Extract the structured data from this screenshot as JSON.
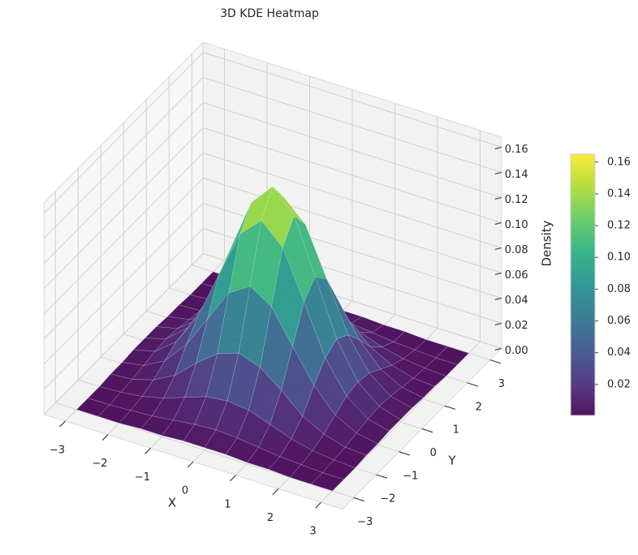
{
  "chart_data": {
    "type": "surface",
    "title": "3D KDE Heatmap",
    "xlabel": "X",
    "ylabel": "Y",
    "zlabel": "Density",
    "x": [
      -3,
      -2.5,
      -2,
      -1.5,
      -1,
      -0.5,
      0,
      0.5,
      1,
      1.5,
      2,
      2.5,
      3
    ],
    "y": [
      -3,
      -2.5,
      -2,
      -1.5,
      -1,
      -0.5,
      0,
      0.5,
      1,
      1.5,
      2,
      2.5,
      3
    ],
    "z": [
      [
        0,
        0,
        0,
        0.001,
        0.001,
        0.002,
        0.002,
        0.002,
        0.001,
        0.001,
        0,
        0,
        0
      ],
      [
        0,
        0,
        0.001,
        0.002,
        0.004,
        0.006,
        0.007,
        0.006,
        0.004,
        0.002,
        0.001,
        0,
        0
      ],
      [
        0,
        0.001,
        0.003,
        0.007,
        0.013,
        0.019,
        0.021,
        0.019,
        0.013,
        0.007,
        0.003,
        0.001,
        0
      ],
      [
        0.001,
        0.002,
        0.007,
        0.016,
        0.031,
        0.044,
        0.05,
        0.044,
        0.031,
        0.016,
        0.007,
        0.002,
        0.001
      ],
      [
        0.001,
        0.004,
        0.013,
        0.031,
        0.057,
        0.083,
        0.094,
        0.083,
        0.057,
        0.031,
        0.013,
        0.004,
        0.001
      ],
      [
        0.002,
        0.006,
        0.019,
        0.044,
        0.083,
        0.121,
        0.137,
        0.121,
        0.083,
        0.044,
        0.019,
        0.006,
        0.002
      ],
      [
        0.002,
        0.007,
        0.021,
        0.05,
        0.094,
        0.137,
        0.155,
        0.137,
        0.094,
        0.05,
        0.021,
        0.007,
        0.002
      ],
      [
        0.002,
        0.006,
        0.019,
        0.044,
        0.083,
        0.121,
        0.137,
        0.121,
        0.083,
        0.044,
        0.019,
        0.006,
        0.002
      ],
      [
        0.001,
        0.004,
        0.013,
        0.031,
        0.057,
        0.083,
        0.094,
        0.083,
        0.057,
        0.031,
        0.013,
        0.004,
        0.001
      ],
      [
        0.001,
        0.002,
        0.007,
        0.016,
        0.031,
        0.044,
        0.05,
        0.044,
        0.031,
        0.016,
        0.007,
        0.002,
        0.001
      ],
      [
        0,
        0.001,
        0.003,
        0.007,
        0.013,
        0.019,
        0.021,
        0.019,
        0.013,
        0.007,
        0.003,
        0.001,
        0
      ],
      [
        0,
        0,
        0.001,
        0.002,
        0.004,
        0.006,
        0.007,
        0.006,
        0.004,
        0.002,
        0.001,
        0,
        0
      ],
      [
        0,
        0,
        0,
        0.001,
        0.001,
        0.002,
        0.002,
        0.002,
        0.001,
        0.001,
        0,
        0,
        0
      ]
    ],
    "colormap": "viridis",
    "xlim": [
      -3.5,
      3.5
    ],
    "ylim": [
      -3.5,
      3.5
    ],
    "zlim": [
      0,
      0.168
    ],
    "xticks": [
      {
        "value": -3,
        "label": "−3"
      },
      {
        "value": -2,
        "label": "−2"
      },
      {
        "value": -1,
        "label": "−1"
      },
      0,
      1,
      2,
      3
    ],
    "yticks": [
      {
        "value": -3,
        "label": "−3"
      },
      {
        "value": -2,
        "label": "−2"
      },
      {
        "value": -1,
        "label": "−1"
      },
      0,
      1,
      2,
      3
    ],
    "zticks": [
      {
        "value": 0,
        "label": "0.00"
      },
      0.02,
      0.04,
      0.06,
      0.08,
      {
        "value": 0.1,
        "label": "0.10"
      },
      0.12,
      0.14,
      0.16
    ],
    "grid": true,
    "colorbar": {
      "lim": [
        0.0005,
        0.165
      ],
      "ticks": [
        0.02,
        0.04,
        0.06,
        0.08,
        {
          "value": 0.1,
          "label": "0.10"
        },
        0.12,
        0.14,
        0.16
      ]
    }
  }
}
